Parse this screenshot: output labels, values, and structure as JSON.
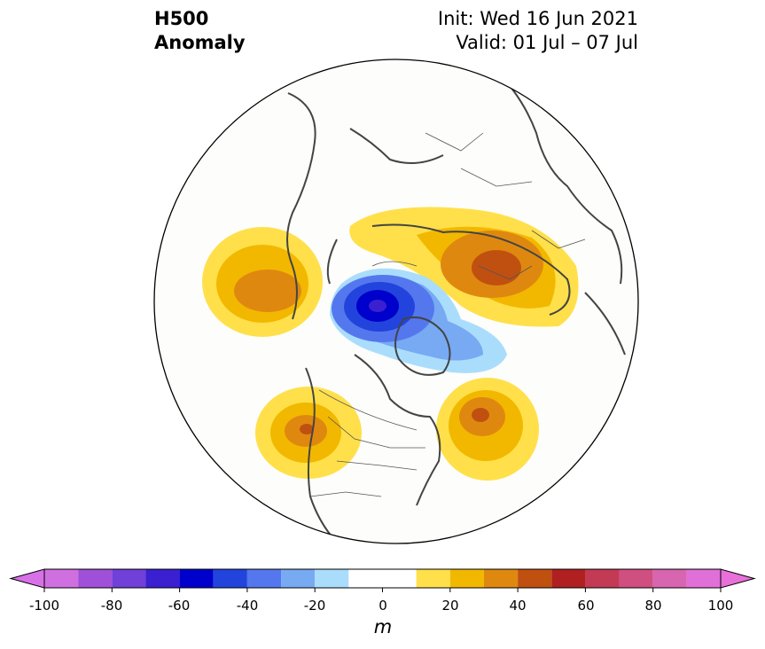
{
  "title": {
    "line1": "H500",
    "line2": "Anomaly"
  },
  "info": {
    "init": "Init: Wed 16 Jun 2021",
    "valid": "Valid: 01 Jul – 07 Jul"
  },
  "colorbar": {
    "ticks": [
      "-100",
      "-80",
      "-60",
      "-40",
      "-20",
      "0",
      "20",
      "40",
      "60",
      "80",
      "100"
    ],
    "unit": "m",
    "bounds": [
      -100,
      100
    ],
    "levels": [
      -100,
      -90,
      -80,
      -70,
      -60,
      -50,
      -40,
      -30,
      -20,
      -10,
      10,
      20,
      30,
      40,
      50,
      60,
      70,
      80,
      90,
      100
    ],
    "colors": [
      "#d070e0",
      "#a050d8",
      "#7040d8",
      "#3a20d0",
      "#0000cc",
      "#2244dd",
      "#5577ee",
      "#77aaf2",
      "#aaddfc",
      "#ffffff",
      "#ffe04a",
      "#f2b800",
      "#df8810",
      "#c05010",
      "#b02020",
      "#c33a55",
      "#cf4f80",
      "#d865b0",
      "#e070d8"
    ],
    "under_color": "#d870e8",
    "over_color": "#e870d8"
  },
  "map_features": {
    "anomaly_centers": [
      {
        "region": "North Pacific",
        "peak": 40
      },
      {
        "region": "Arctic Ocean",
        "peak": -70
      },
      {
        "region": "Northern Europe / Russia",
        "peak": 50
      },
      {
        "region": "Western North America",
        "peak": 50
      },
      {
        "region": "Western Atlantic",
        "peak": 50
      }
    ]
  }
}
